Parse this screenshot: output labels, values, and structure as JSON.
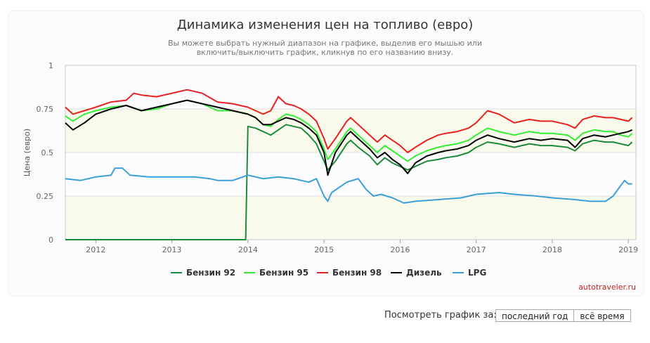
{
  "header": {
    "title": "Динамика изменения цен на топливо (евро)",
    "subtitle": "Вы можете выбрать нужный диапазон на графике, выделив его мышью или включить/выключить график, кликнув по его названию внизу."
  },
  "credit": "autotraveler.ru",
  "period": {
    "label": "Посмотреть график за:",
    "buttons": [
      "последний год",
      "всё время"
    ]
  },
  "chart_data": {
    "type": "line",
    "ylabel": "Цена (евро)",
    "xlabel": "",
    "xlim": [
      2011.6,
      2019.1
    ],
    "ylim": [
      0,
      1
    ],
    "yticks": [
      0,
      0.25,
      0.5,
      0.75,
      1
    ],
    "yticklabels": [
      "0",
      "0.25",
      "0.5",
      "0.75",
      "1"
    ],
    "xticks": [
      2012,
      2013,
      2014,
      2015,
      2016,
      2017,
      2018,
      2019
    ],
    "xticklabels": [
      "2012",
      "2013",
      "2014",
      "2015",
      "2016",
      "2017",
      "2018",
      "2019"
    ],
    "legend_position": "bottom-center",
    "series": [
      {
        "name": "Бензин 92",
        "color": "#1b8a3b",
        "points": [
          [
            2011.6,
            0
          ],
          [
            2013.97,
            0
          ],
          [
            2014.0,
            0.65
          ],
          [
            2014.1,
            0.64
          ],
          [
            2014.2,
            0.62
          ],
          [
            2014.3,
            0.6
          ],
          [
            2014.4,
            0.63
          ],
          [
            2014.5,
            0.66
          ],
          [
            2014.6,
            0.65
          ],
          [
            2014.7,
            0.64
          ],
          [
            2014.8,
            0.6
          ],
          [
            2014.9,
            0.55
          ],
          [
            2015.0,
            0.45
          ],
          [
            2015.05,
            0.4
          ],
          [
            2015.15,
            0.45
          ],
          [
            2015.3,
            0.55
          ],
          [
            2015.35,
            0.57
          ],
          [
            2015.45,
            0.53
          ],
          [
            2015.6,
            0.48
          ],
          [
            2015.7,
            0.43
          ],
          [
            2015.8,
            0.47
          ],
          [
            2015.9,
            0.44
          ],
          [
            2016.0,
            0.42
          ],
          [
            2016.1,
            0.4
          ],
          [
            2016.2,
            0.42
          ],
          [
            2016.35,
            0.45
          ],
          [
            2016.5,
            0.46
          ],
          [
            2016.6,
            0.47
          ],
          [
            2016.75,
            0.48
          ],
          [
            2016.9,
            0.5
          ],
          [
            2017.0,
            0.53
          ],
          [
            2017.15,
            0.56
          ],
          [
            2017.3,
            0.55
          ],
          [
            2017.5,
            0.53
          ],
          [
            2017.7,
            0.55
          ],
          [
            2017.85,
            0.54
          ],
          [
            2018.0,
            0.54
          ],
          [
            2018.2,
            0.53
          ],
          [
            2018.3,
            0.51
          ],
          [
            2018.4,
            0.55
          ],
          [
            2018.55,
            0.57
          ],
          [
            2018.7,
            0.56
          ],
          [
            2018.8,
            0.56
          ],
          [
            2018.9,
            0.55
          ],
          [
            2019.0,
            0.54
          ],
          [
            2019.05,
            0.56
          ]
        ]
      },
      {
        "name": "Бензин 95",
        "color": "#33ee33",
        "points": [
          [
            2011.6,
            0.71
          ],
          [
            2011.7,
            0.68
          ],
          [
            2011.85,
            0.72
          ],
          [
            2012.0,
            0.74
          ],
          [
            2012.2,
            0.76
          ],
          [
            2012.4,
            0.77
          ],
          [
            2012.6,
            0.74
          ],
          [
            2012.8,
            0.75
          ],
          [
            2013.0,
            0.78
          ],
          [
            2013.2,
            0.8
          ],
          [
            2013.4,
            0.78
          ],
          [
            2013.6,
            0.74
          ],
          [
            2013.8,
            0.74
          ],
          [
            2014.0,
            0.72
          ],
          [
            2014.1,
            0.7
          ],
          [
            2014.2,
            0.66
          ],
          [
            2014.3,
            0.65
          ],
          [
            2014.4,
            0.69
          ],
          [
            2014.5,
            0.72
          ],
          [
            2014.6,
            0.71
          ],
          [
            2014.7,
            0.69
          ],
          [
            2014.8,
            0.66
          ],
          [
            2014.9,
            0.62
          ],
          [
            2015.0,
            0.52
          ],
          [
            2015.05,
            0.46
          ],
          [
            2015.15,
            0.52
          ],
          [
            2015.3,
            0.62
          ],
          [
            2015.35,
            0.64
          ],
          [
            2015.45,
            0.6
          ],
          [
            2015.6,
            0.54
          ],
          [
            2015.7,
            0.5
          ],
          [
            2015.8,
            0.54
          ],
          [
            2015.9,
            0.51
          ],
          [
            2016.0,
            0.48
          ],
          [
            2016.1,
            0.45
          ],
          [
            2016.2,
            0.48
          ],
          [
            2016.35,
            0.51
          ],
          [
            2016.5,
            0.53
          ],
          [
            2016.6,
            0.54
          ],
          [
            2016.75,
            0.55
          ],
          [
            2016.9,
            0.57
          ],
          [
            2017.0,
            0.6
          ],
          [
            2017.15,
            0.64
          ],
          [
            2017.3,
            0.62
          ],
          [
            2017.5,
            0.6
          ],
          [
            2017.7,
            0.62
          ],
          [
            2017.85,
            0.61
          ],
          [
            2018.0,
            0.61
          ],
          [
            2018.2,
            0.6
          ],
          [
            2018.3,
            0.57
          ],
          [
            2018.4,
            0.61
          ],
          [
            2018.55,
            0.63
          ],
          [
            2018.7,
            0.62
          ],
          [
            2018.8,
            0.62
          ],
          [
            2018.9,
            0.6
          ],
          [
            2019.0,
            0.59
          ],
          [
            2019.05,
            0.61
          ]
        ]
      },
      {
        "name": "Бензин 98",
        "color": "#e82020",
        "points": [
          [
            2011.6,
            0.76
          ],
          [
            2011.7,
            0.72
          ],
          [
            2011.85,
            0.74
          ],
          [
            2012.0,
            0.76
          ],
          [
            2012.2,
            0.79
          ],
          [
            2012.4,
            0.8
          ],
          [
            2012.5,
            0.84
          ],
          [
            2012.6,
            0.83
          ],
          [
            2012.8,
            0.82
          ],
          [
            2013.0,
            0.84
          ],
          [
            2013.2,
            0.86
          ],
          [
            2013.4,
            0.84
          ],
          [
            2013.6,
            0.79
          ],
          [
            2013.8,
            0.78
          ],
          [
            2014.0,
            0.76
          ],
          [
            2014.1,
            0.74
          ],
          [
            2014.2,
            0.72
          ],
          [
            2014.3,
            0.74
          ],
          [
            2014.4,
            0.82
          ],
          [
            2014.5,
            0.78
          ],
          [
            2014.6,
            0.77
          ],
          [
            2014.7,
            0.75
          ],
          [
            2014.8,
            0.72
          ],
          [
            2014.9,
            0.68
          ],
          [
            2015.0,
            0.58
          ],
          [
            2015.05,
            0.52
          ],
          [
            2015.15,
            0.58
          ],
          [
            2015.3,
            0.68
          ],
          [
            2015.35,
            0.7
          ],
          [
            2015.45,
            0.66
          ],
          [
            2015.6,
            0.6
          ],
          [
            2015.7,
            0.56
          ],
          [
            2015.8,
            0.6
          ],
          [
            2015.9,
            0.57
          ],
          [
            2016.0,
            0.54
          ],
          [
            2016.1,
            0.5
          ],
          [
            2016.2,
            0.53
          ],
          [
            2016.35,
            0.57
          ],
          [
            2016.5,
            0.6
          ],
          [
            2016.6,
            0.61
          ],
          [
            2016.75,
            0.62
          ],
          [
            2016.9,
            0.64
          ],
          [
            2017.0,
            0.67
          ],
          [
            2017.15,
            0.74
          ],
          [
            2017.3,
            0.72
          ],
          [
            2017.5,
            0.67
          ],
          [
            2017.7,
            0.69
          ],
          [
            2017.85,
            0.68
          ],
          [
            2018.0,
            0.68
          ],
          [
            2018.2,
            0.66
          ],
          [
            2018.3,
            0.64
          ],
          [
            2018.4,
            0.69
          ],
          [
            2018.55,
            0.71
          ],
          [
            2018.7,
            0.7
          ],
          [
            2018.8,
            0.7
          ],
          [
            2018.9,
            0.69
          ],
          [
            2019.0,
            0.68
          ],
          [
            2019.05,
            0.7
          ]
        ]
      },
      {
        "name": "Дизель",
        "color": "#000000",
        "points": [
          [
            2011.6,
            0.67
          ],
          [
            2011.7,
            0.63
          ],
          [
            2011.85,
            0.67
          ],
          [
            2012.0,
            0.72
          ],
          [
            2012.2,
            0.75
          ],
          [
            2012.4,
            0.77
          ],
          [
            2012.6,
            0.74
          ],
          [
            2012.8,
            0.76
          ],
          [
            2013.0,
            0.78
          ],
          [
            2013.2,
            0.8
          ],
          [
            2013.4,
            0.78
          ],
          [
            2013.6,
            0.76
          ],
          [
            2013.8,
            0.74
          ],
          [
            2014.0,
            0.72
          ],
          [
            2014.1,
            0.7
          ],
          [
            2014.2,
            0.66
          ],
          [
            2014.3,
            0.66
          ],
          [
            2014.4,
            0.68
          ],
          [
            2014.5,
            0.7
          ],
          [
            2014.6,
            0.69
          ],
          [
            2014.7,
            0.67
          ],
          [
            2014.8,
            0.64
          ],
          [
            2014.9,
            0.6
          ],
          [
            2015.0,
            0.5
          ],
          [
            2015.05,
            0.37
          ],
          [
            2015.15,
            0.5
          ],
          [
            2015.3,
            0.6
          ],
          [
            2015.35,
            0.62
          ],
          [
            2015.45,
            0.58
          ],
          [
            2015.6,
            0.52
          ],
          [
            2015.7,
            0.47
          ],
          [
            2015.8,
            0.5
          ],
          [
            2015.9,
            0.46
          ],
          [
            2016.0,
            0.43
          ],
          [
            2016.1,
            0.38
          ],
          [
            2016.2,
            0.44
          ],
          [
            2016.35,
            0.48
          ],
          [
            2016.5,
            0.5
          ],
          [
            2016.6,
            0.51
          ],
          [
            2016.75,
            0.52
          ],
          [
            2016.9,
            0.54
          ],
          [
            2017.0,
            0.57
          ],
          [
            2017.15,
            0.6
          ],
          [
            2017.3,
            0.58
          ],
          [
            2017.5,
            0.56
          ],
          [
            2017.7,
            0.58
          ],
          [
            2017.85,
            0.57
          ],
          [
            2018.0,
            0.58
          ],
          [
            2018.2,
            0.57
          ],
          [
            2018.3,
            0.53
          ],
          [
            2018.4,
            0.58
          ],
          [
            2018.55,
            0.6
          ],
          [
            2018.7,
            0.59
          ],
          [
            2018.8,
            0.6
          ],
          [
            2018.9,
            0.61
          ],
          [
            2019.0,
            0.62
          ],
          [
            2019.05,
            0.63
          ]
        ]
      },
      {
        "name": "LPG",
        "color": "#3a9fd6",
        "points": [
          [
            2011.6,
            0.35
          ],
          [
            2011.8,
            0.34
          ],
          [
            2012.0,
            0.36
          ],
          [
            2012.2,
            0.37
          ],
          [
            2012.25,
            0.41
          ],
          [
            2012.35,
            0.41
          ],
          [
            2012.45,
            0.37
          ],
          [
            2012.7,
            0.36
          ],
          [
            2013.0,
            0.36
          ],
          [
            2013.3,
            0.36
          ],
          [
            2013.5,
            0.35
          ],
          [
            2013.6,
            0.34
          ],
          [
            2013.8,
            0.34
          ],
          [
            2014.0,
            0.37
          ],
          [
            2014.2,
            0.35
          ],
          [
            2014.4,
            0.36
          ],
          [
            2014.6,
            0.35
          ],
          [
            2014.8,
            0.33
          ],
          [
            2014.9,
            0.35
          ],
          [
            2014.95,
            0.3
          ],
          [
            2015.0,
            0.25
          ],
          [
            2015.05,
            0.22
          ],
          [
            2015.1,
            0.27
          ],
          [
            2015.3,
            0.33
          ],
          [
            2015.45,
            0.35
          ],
          [
            2015.55,
            0.29
          ],
          [
            2015.65,
            0.25
          ],
          [
            2015.75,
            0.26
          ],
          [
            2015.9,
            0.24
          ],
          [
            2016.0,
            0.22
          ],
          [
            2016.05,
            0.21
          ],
          [
            2016.2,
            0.22
          ],
          [
            2016.5,
            0.23
          ],
          [
            2016.8,
            0.24
          ],
          [
            2017.0,
            0.26
          ],
          [
            2017.3,
            0.27
          ],
          [
            2017.5,
            0.26
          ],
          [
            2017.8,
            0.25
          ],
          [
            2018.0,
            0.24
          ],
          [
            2018.3,
            0.23
          ],
          [
            2018.5,
            0.22
          ],
          [
            2018.7,
            0.22
          ],
          [
            2018.8,
            0.25
          ],
          [
            2018.9,
            0.31
          ],
          [
            2018.95,
            0.34
          ],
          [
            2019.0,
            0.32
          ],
          [
            2019.05,
            0.32
          ]
        ]
      }
    ]
  }
}
